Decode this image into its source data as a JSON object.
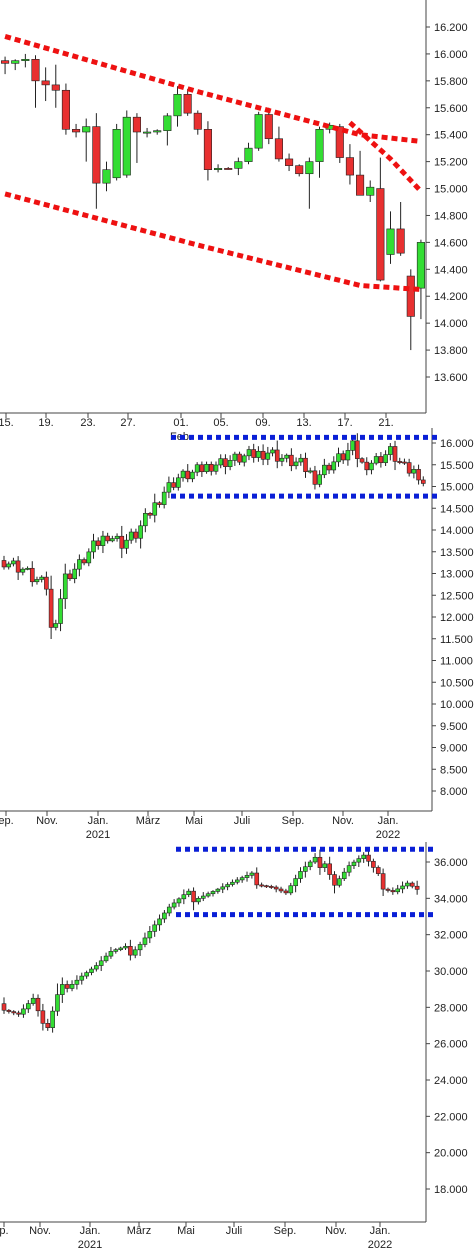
{
  "colors": {
    "up": "#33dd33",
    "down": "#e83030",
    "channel_red": "#ee1111",
    "channel_blue": "#0a1fd6",
    "axis": "#444444"
  },
  "chart_data": [
    {
      "type": "candlestick",
      "scale": "daily",
      "ylim": [
        13500,
        16300
      ],
      "y_ticks": [
        "16.200",
        "16.000",
        "15.800",
        "15.600",
        "15.400",
        "15.200",
        "15.000",
        "14.800",
        "14.600",
        "14.400",
        "14.200",
        "14.000",
        "13.800",
        "13.600"
      ],
      "y_tick_values": [
        16200,
        16000,
        15800,
        15600,
        15400,
        15200,
        15000,
        14800,
        14600,
        14400,
        14200,
        14000,
        13800,
        13600
      ],
      "x_ticks": [
        {
          "label": "15.",
          "sub": ""
        },
        {
          "label": "19.",
          "sub": ""
        },
        {
          "label": "23.",
          "sub": ""
        },
        {
          "label": "27.",
          "sub": ""
        },
        {
          "label": "01.",
          "sub": "Feb."
        },
        {
          "label": "05.",
          "sub": ""
        },
        {
          "label": "09.",
          "sub": ""
        },
        {
          "label": "13.",
          "sub": ""
        },
        {
          "label": "17.",
          "sub": ""
        },
        {
          "label": "21.",
          "sub": ""
        }
      ],
      "candles": [
        [
          15950,
          15980,
          15850,
          15930
        ],
        [
          15930,
          15960,
          15880,
          15950
        ],
        [
          15950,
          16000,
          15900,
          15960
        ],
        [
          15960,
          15990,
          15600,
          15800
        ],
        [
          15800,
          15900,
          15650,
          15770
        ],
        [
          15770,
          15920,
          15600,
          15730
        ],
        [
          15730,
          15780,
          15400,
          15440
        ],
        [
          15440,
          15480,
          15380,
          15420
        ],
        [
          15420,
          15520,
          15200,
          15460
        ],
        [
          15460,
          15560,
          14850,
          15040
        ],
        [
          15040,
          15200,
          14980,
          15140
        ],
        [
          15080,
          15480,
          15060,
          15440
        ],
        [
          15100,
          15580,
          15080,
          15530
        ],
        [
          15530,
          15560,
          15190,
          15420
        ],
        [
          15420,
          15450,
          15380,
          15420
        ],
        [
          15420,
          15440,
          15400,
          15430
        ],
        [
          15430,
          15560,
          15320,
          15540
        ],
        [
          15540,
          15760,
          15460,
          15700
        ],
        [
          15700,
          15740,
          15540,
          15560
        ],
        [
          15560,
          15580,
          15400,
          15440
        ],
        [
          15440,
          15500,
          15060,
          15140
        ],
        [
          15140,
          15180,
          15120,
          15150
        ],
        [
          15150,
          15160,
          15140,
          15145
        ],
        [
          15150,
          15230,
          15100,
          15200
        ],
        [
          15200,
          15340,
          15180,
          15300
        ],
        [
          15300,
          15570,
          15280,
          15550
        ],
        [
          15550,
          15600,
          15330,
          15370
        ],
        [
          15370,
          15460,
          15200,
          15220
        ],
        [
          15220,
          15260,
          15130,
          15170
        ],
        [
          15170,
          15180,
          15090,
          15110
        ],
        [
          15110,
          15230,
          14850,
          15200
        ],
        [
          15200,
          15460,
          15080,
          15440
        ],
        [
          15440,
          15490,
          15410,
          15470
        ],
        [
          15460,
          15480,
          15190,
          15230
        ],
        [
          15230,
          15330,
          15030,
          15100
        ],
        [
          15100,
          15280,
          14950,
          14950
        ],
        [
          14950,
          15060,
          14900,
          15010
        ],
        [
          15000,
          15230,
          14310,
          14320
        ],
        [
          14510,
          14830,
          14440,
          14700
        ],
        [
          14700,
          14900,
          14500,
          14520
        ],
        [
          14350,
          14400,
          13800,
          14050
        ],
        [
          14260,
          14620,
          14030,
          14600
        ]
      ],
      "channel_top": [
        [
          0,
          16130
        ],
        [
          19,
          15720
        ],
        [
          35,
          15400
        ],
        [
          41,
          15350
        ]
      ],
      "channel_bottom": [
        [
          0,
          14960
        ],
        [
          19,
          14580
        ],
        [
          35,
          14280
        ],
        [
          41,
          14250
        ]
      ],
      "breakout": [
        [
          34,
          15490
        ],
        [
          38,
          15220
        ],
        [
          41,
          14980
        ]
      ]
    },
    {
      "type": "candlestick",
      "scale": "weekly",
      "ylim": [
        7500,
        16300
      ],
      "y_ticks": [
        "16.000",
        "15.500",
        "15.000",
        "14.500",
        "14.000",
        "13.500",
        "13.000",
        "12.500",
        "12.000",
        "11.500",
        "11.000",
        "10.500",
        "10.000",
        "9.500",
        "9.000",
        "8.500",
        "8.000"
      ],
      "y_tick_values": [
        16000,
        15500,
        15000,
        14500,
        14000,
        13500,
        13000,
        12500,
        12000,
        11500,
        11000,
        10500,
        10000,
        9500,
        9000,
        8500,
        8000
      ],
      "x_ticks": [
        {
          "label": "ep.",
          "sub": ""
        },
        {
          "label": "Nov.",
          "sub": ""
        },
        {
          "label": "Jan.",
          "sub": "2021"
        },
        {
          "label": "März",
          "sub": ""
        },
        {
          "label": "Mai",
          "sub": ""
        },
        {
          "label": "Juli",
          "sub": ""
        },
        {
          "label": "Sep.",
          "sub": ""
        },
        {
          "label": "Nov.",
          "sub": ""
        },
        {
          "label": "Jan.",
          "sub": "2022"
        }
      ],
      "channel_top": 16130,
      "channel_bottom": 14780
    },
    {
      "type": "candlestick",
      "scale": "weekly",
      "ylim": [
        16500,
        37300
      ],
      "y_ticks": [
        "36.000",
        "34.000",
        "32.000",
        "30.000",
        "28.000",
        "26.000",
        "24.000",
        "22.000",
        "20.000",
        "18.000"
      ],
      "y_tick_values": [
        36000,
        34000,
        32000,
        30000,
        28000,
        26000,
        24000,
        22000,
        20000,
        18000
      ],
      "x_ticks": [
        {
          "label": "p.",
          "sub": ""
        },
        {
          "label": "Nov.",
          "sub": ""
        },
        {
          "label": "Jan.",
          "sub": "2021"
        },
        {
          "label": "März",
          "sub": ""
        },
        {
          "label": "Mai",
          "sub": ""
        },
        {
          "label": "Juli",
          "sub": ""
        },
        {
          "label": "Sep.",
          "sub": ""
        },
        {
          "label": "Nov.",
          "sub": ""
        },
        {
          "label": "Jan.",
          "sub": "2022"
        }
      ],
      "channel_top": 36700,
      "channel_bottom": 33100
    }
  ]
}
